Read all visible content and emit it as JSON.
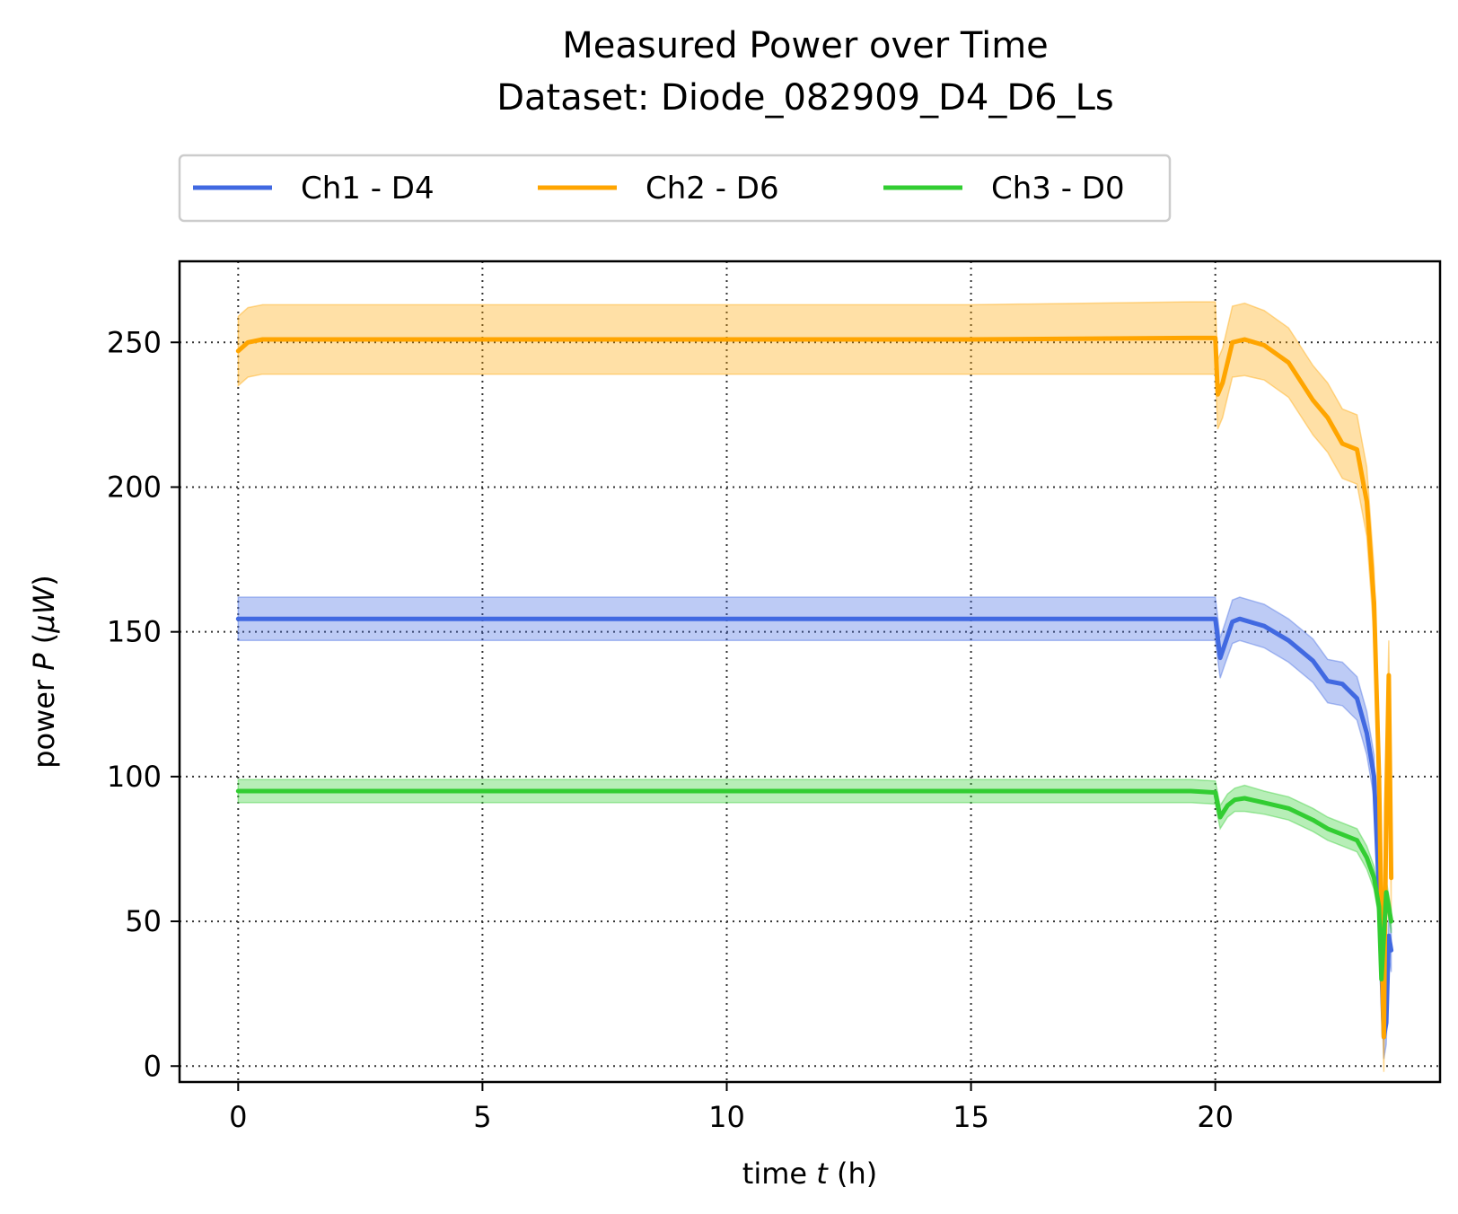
{
  "chart_data": {
    "type": "line",
    "title": "Measured Power over Time",
    "subtitle": "Dataset: Diode_082909_D4_D6_Ls",
    "xlabel_prefix": "time ",
    "xlabel_var": "t",
    "xlabel_suffix": " (h)",
    "ylabel_prefix": "power ",
    "ylabel_var": "P",
    "ylabel_suffix": " (",
    "ylabel_unit": "μW",
    "ylabel_close": ")",
    "xlim": [
      -1.2,
      24.6
    ],
    "ylim": [
      -5.5,
      278
    ],
    "xticks": [
      0,
      5,
      10,
      15,
      20
    ],
    "xtick_labels": [
      "0",
      "5",
      "10",
      "15",
      "20"
    ],
    "yticks": [
      0,
      50,
      100,
      150,
      200,
      250
    ],
    "ytick_labels": [
      "0",
      "50",
      "100",
      "150",
      "200",
      "250"
    ],
    "grid": true,
    "legend_position": "top, above plot, 3 columns",
    "series": [
      {
        "name": "Ch1 - D4",
        "color": "#4169e1",
        "x": [
          0,
          0.3,
          1,
          5,
          10,
          15,
          19.5,
          20.0,
          20.1,
          20.2,
          20.35,
          20.5,
          21,
          21.5,
          22,
          22.3,
          22.6,
          22.9,
          23.1,
          23.25,
          23.35,
          23.45,
          23.5,
          23.55,
          23.6
        ],
        "y": [
          154.5,
          154.5,
          154.5,
          154.5,
          154.5,
          154.5,
          154.5,
          154.5,
          141,
          146,
          153.5,
          154.5,
          152,
          147,
          140,
          133,
          132,
          127,
          115,
          100,
          60,
          10,
          15,
          45,
          40
        ],
        "band_upper": [
          162,
          162,
          162,
          162,
          162,
          162,
          162,
          162,
          148,
          153,
          161,
          162,
          159.5,
          154.5,
          147.5,
          140.5,
          139.5,
          134.5,
          122.5,
          107.5,
          67.5,
          17.5,
          22.5,
          52.5,
          47.5
        ],
        "band_lower": [
          147,
          147,
          147,
          147,
          147,
          147,
          147,
          147,
          134,
          139,
          146,
          147,
          144.5,
          139.5,
          132.5,
          125.5,
          124.5,
          119.5,
          107.5,
          92.5,
          52.5,
          2.5,
          7.5,
          37.5,
          32.5
        ]
      },
      {
        "name": "Ch2 - D6",
        "color": "#ffa500",
        "x": [
          0,
          0.2,
          0.5,
          1,
          5,
          10,
          15,
          19.5,
          20.0,
          20.05,
          20.15,
          20.35,
          20.6,
          21,
          21.5,
          22,
          22.3,
          22.6,
          22.9,
          23.1,
          23.25,
          23.35,
          23.42,
          23.45,
          23.5,
          23.55,
          23.6
        ],
        "y": [
          247,
          250,
          251,
          251,
          251,
          251,
          251,
          251.5,
          251.5,
          232,
          236,
          250,
          251,
          249,
          243,
          230,
          224,
          215,
          213,
          195,
          160,
          100,
          30,
          10,
          90,
          135,
          65
        ],
        "band_upper": [
          259,
          262,
          263,
          263,
          263,
          263,
          263,
          264,
          264,
          244,
          248,
          262.5,
          263.5,
          261,
          255,
          242,
          236,
          227,
          225,
          207,
          172,
          112,
          42,
          22,
          102,
          147,
          77
        ],
        "band_lower": [
          235,
          238,
          239,
          239,
          239,
          239,
          239,
          239,
          239,
          220,
          224,
          238,
          238.5,
          237,
          231,
          218,
          212,
          203,
          201,
          183,
          148,
          88,
          18,
          -2,
          78,
          123,
          53
        ]
      },
      {
        "name": "Ch3 - D0",
        "color": "#32cd32",
        "x": [
          0,
          1,
          5,
          10,
          15,
          19.5,
          20.0,
          20.1,
          20.25,
          20.4,
          20.6,
          21,
          21.5,
          22,
          22.3,
          22.6,
          22.9,
          23.1,
          23.25,
          23.35,
          23.4,
          23.45,
          23.5,
          23.55,
          23.6
        ],
        "y": [
          95,
          95,
          95,
          95,
          95,
          95,
          94.5,
          86,
          90,
          92,
          92.5,
          91,
          89,
          85,
          82,
          80,
          78,
          72,
          65,
          55,
          30,
          45,
          60,
          55,
          50
        ],
        "band_upper": [
          99,
          99,
          99,
          99,
          99,
          99,
          98.5,
          90,
          94,
          96,
          97,
          95,
          93,
          89,
          86,
          84,
          82,
          76,
          69,
          59,
          34,
          49,
          64,
          59,
          54
        ],
        "band_lower": [
          91,
          91,
          91,
          91,
          91,
          91,
          90.5,
          82,
          86,
          88,
          88,
          87,
          85,
          81,
          78,
          76,
          74,
          68,
          61,
          51,
          26,
          41,
          56,
          51,
          46
        ]
      }
    ]
  }
}
